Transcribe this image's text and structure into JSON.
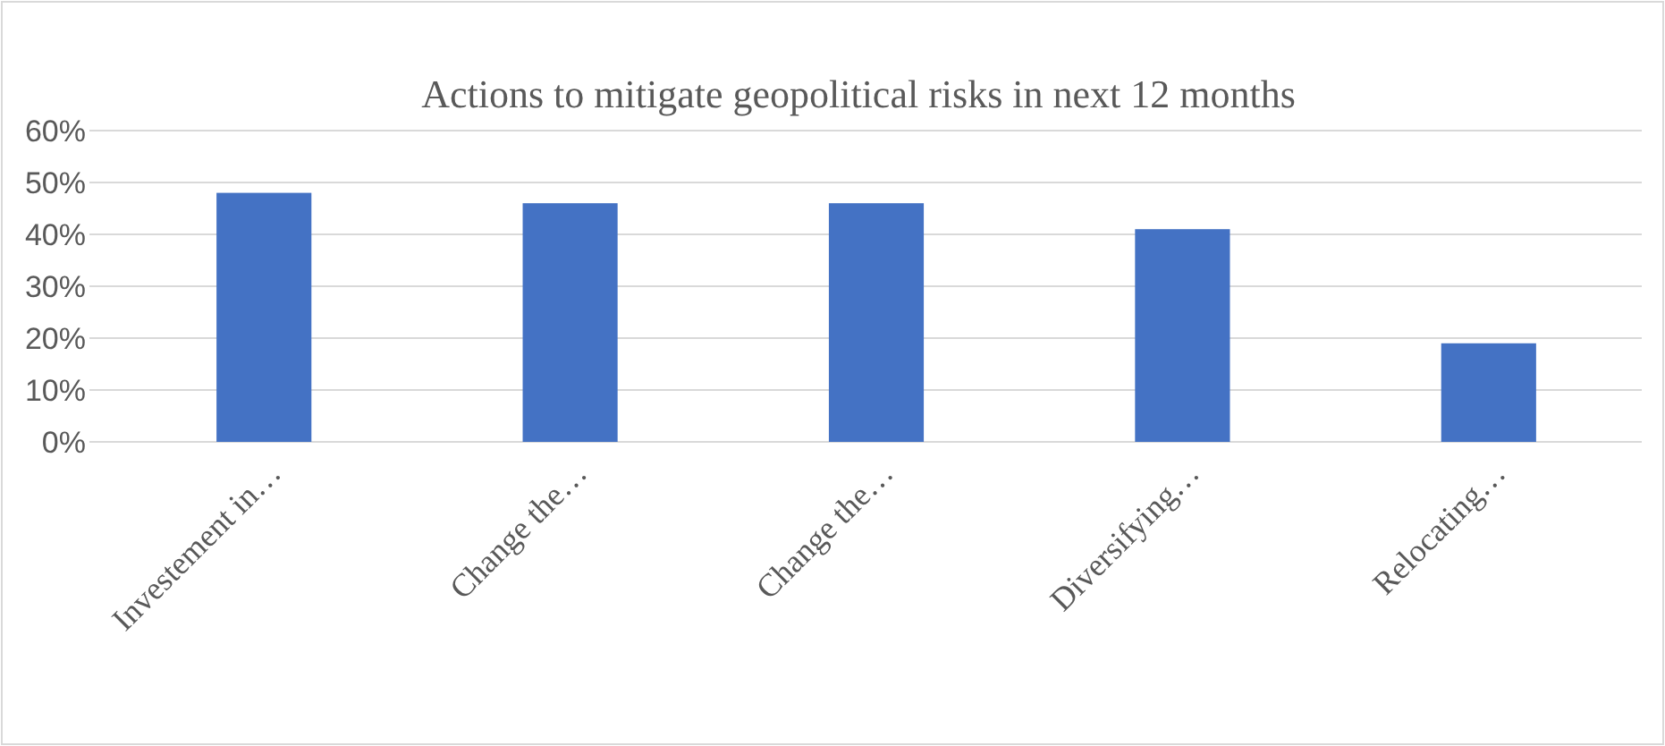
{
  "chart_data": {
    "type": "bar",
    "title": "Actions to mitigate geopolitical risks in next 12 months",
    "categories": [
      "Investement in…",
      "Change the…",
      "Change the…",
      "Diversifying…",
      "Relocating…"
    ],
    "values": [
      48,
      46,
      46,
      41,
      19
    ],
    "color": "#4472c4",
    "ylim": [
      0,
      60
    ],
    "yticks": [
      {
        "value": 0,
        "label": "0%"
      },
      {
        "value": 10,
        "label": "10%"
      },
      {
        "value": 20,
        "label": "20%"
      },
      {
        "value": 30,
        "label": "30%"
      },
      {
        "value": 40,
        "label": "40%"
      },
      {
        "value": 50,
        "label": "50%"
      },
      {
        "value": 60,
        "label": "60%"
      }
    ],
    "grid": "y"
  }
}
